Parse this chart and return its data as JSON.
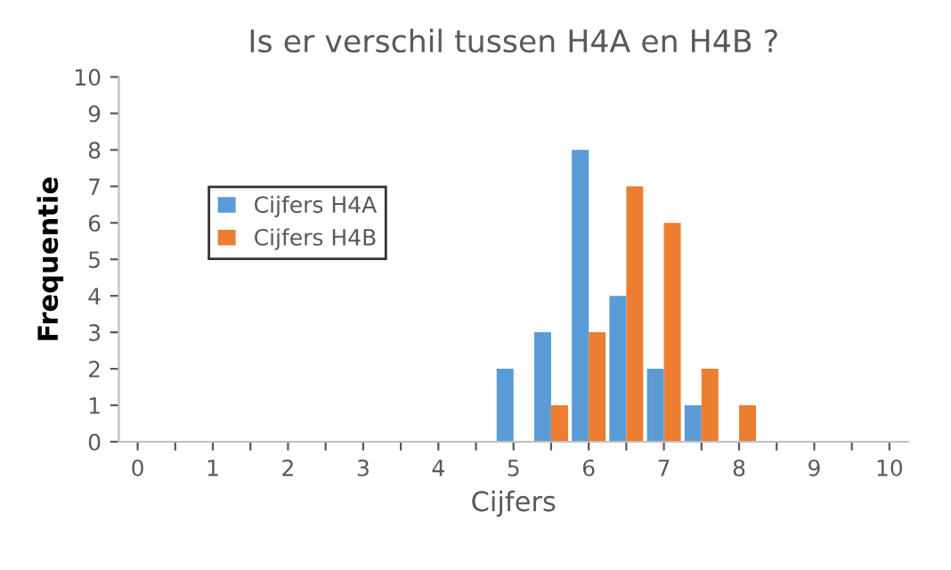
{
  "chart_data": {
    "type": "bar",
    "title": "Is er verschil tussen H4A en H4B ?",
    "xlabel": "Cijfers",
    "ylabel": "Frequentie",
    "categories": [
      "0",
      null,
      "1",
      null,
      "2",
      null,
      "3",
      null,
      "4",
      null,
      "5",
      null,
      "6",
      null,
      "7",
      null,
      "8",
      null,
      "9",
      null,
      "10"
    ],
    "series": [
      {
        "name": "Cijfers H4A",
        "color": "#5b9bd5",
        "values": [
          0,
          0,
          0,
          0,
          0,
          0,
          0,
          0,
          0,
          0,
          2,
          3,
          8,
          4,
          2,
          1,
          0,
          0,
          0,
          0,
          0
        ]
      },
      {
        "name": "Cijfers H4B",
        "color": "#ed7d31",
        "values": [
          0,
          0,
          0,
          0,
          0,
          0,
          0,
          0,
          0,
          0,
          0,
          1,
          3,
          7,
          6,
          2,
          1,
          0,
          0,
          0,
          0
        ]
      }
    ],
    "ylim": [
      0,
      10
    ],
    "yticks": [
      0,
      1,
      2,
      3,
      4,
      5,
      6,
      7,
      8,
      9,
      10
    ],
    "legend": "left"
  }
}
